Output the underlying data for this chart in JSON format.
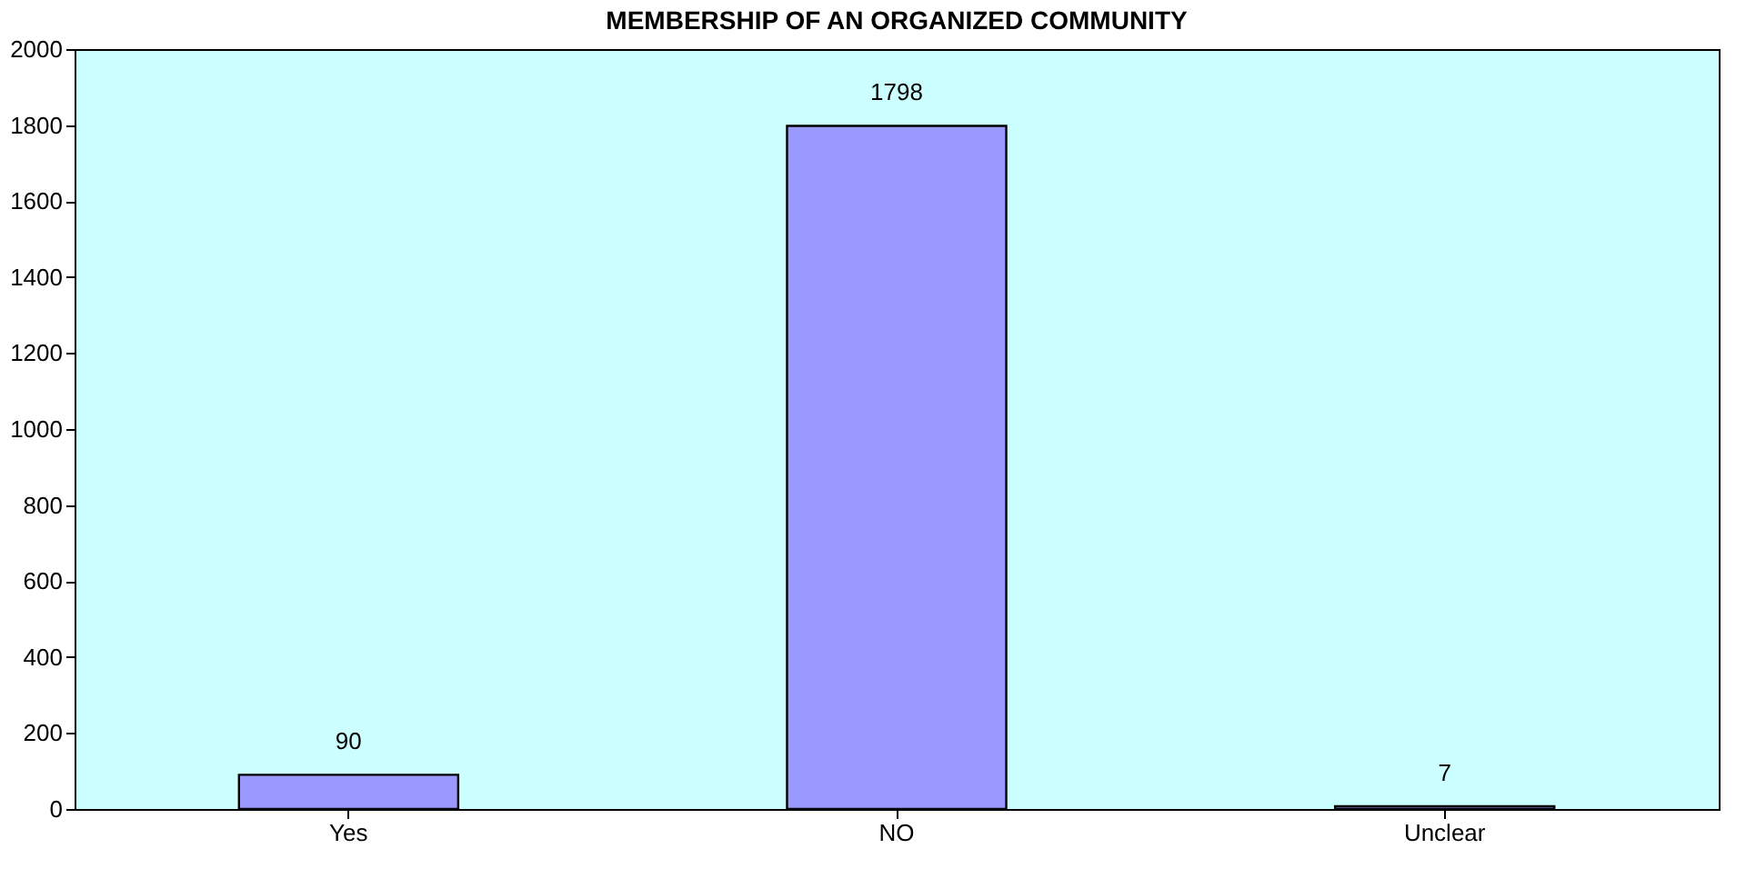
{
  "chart_data": {
    "type": "bar",
    "title": "MEMBERSHIP OF AN ORGANIZED COMMUNITY",
    "categories": [
      "Yes",
      "NO",
      "Unclear"
    ],
    "values": [
      90,
      1798,
      7
    ],
    "color": "#9999ff",
    "ylim": [
      0,
      2000
    ],
    "yticks": [
      0,
      200,
      400,
      600,
      800,
      1000,
      1200,
      1400,
      1600,
      1800,
      2000
    ],
    "grid": false,
    "data_labels": true
  }
}
